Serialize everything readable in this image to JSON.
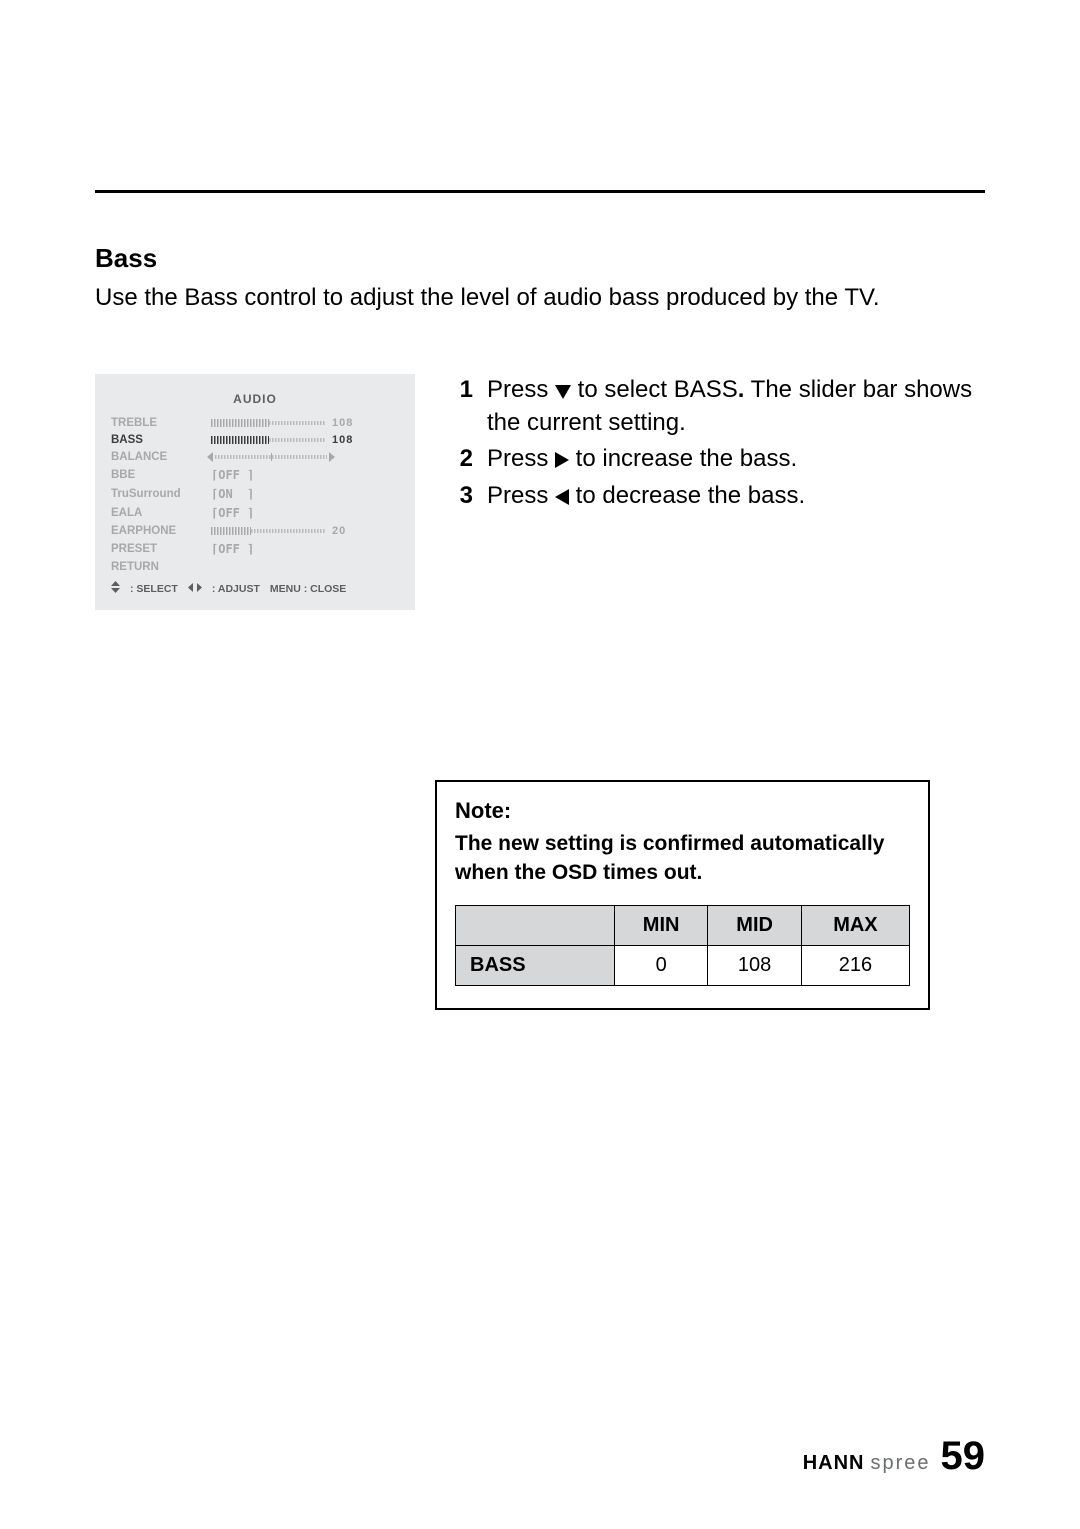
{
  "section": {
    "title": "Bass",
    "intro": "Use the Bass control to adjust the level of audio bass produced by the TV."
  },
  "osd": {
    "title": "AUDIO",
    "rows": [
      {
        "label": "TREBLE",
        "kind": "slider",
        "value": "108",
        "fill_pct": 50,
        "selected": false
      },
      {
        "label": "BASS",
        "kind": "slider",
        "value": "108",
        "fill_pct": 50,
        "selected": true
      },
      {
        "label": "BALANCE",
        "kind": "balance",
        "value": "",
        "fill_pct": 50,
        "selected": false
      },
      {
        "label": "BBE",
        "kind": "bracket",
        "value": "OFF",
        "selected": false
      },
      {
        "label": "TruSurround",
        "kind": "bracket",
        "value": "ON",
        "selected": false
      },
      {
        "label": "EALA",
        "kind": "bracket",
        "value": "OFF",
        "selected": false
      },
      {
        "label": "EARPHONE",
        "kind": "slider",
        "value": "20",
        "fill_pct": 35,
        "selected": false
      },
      {
        "label": "PRESET",
        "kind": "bracket",
        "value": "OFF",
        "selected": false
      },
      {
        "label": "RETURN",
        "kind": "none",
        "value": "",
        "selected": false
      }
    ],
    "footer": {
      "select": ": SELECT",
      "adjust": ": ADJUST",
      "close": "MENU : CLOSE"
    }
  },
  "steps": [
    {
      "n": "1",
      "pre": "Press ",
      "icon": "down",
      "post_a": " to select BASS",
      "post_b": " The slider bar shows the current setting."
    },
    {
      "n": "2",
      "pre": "Press ",
      "icon": "right",
      "post_a": " to increase the bass.",
      "post_b": ""
    },
    {
      "n": "3",
      "pre": "Press ",
      "icon": "left",
      "post_a": " to decrease the bass.",
      "post_b": ""
    }
  ],
  "note": {
    "title": "Note:",
    "body": "The new setting is confirmed automatically when the OSD times out.",
    "table": {
      "headers": [
        "",
        "MIN",
        "MID",
        "MAX"
      ],
      "row_label": "BASS",
      "values": [
        "0",
        "108",
        "216"
      ]
    }
  },
  "footer": {
    "brand_a": "HANN",
    "brand_b": "spree",
    "page": "59"
  },
  "colors": {
    "osd_bg": "#e9eaeb",
    "osd_muted": "#a6a9ab",
    "osd_active": "#3b3d3f",
    "table_header_bg": "#d6d7d8"
  }
}
